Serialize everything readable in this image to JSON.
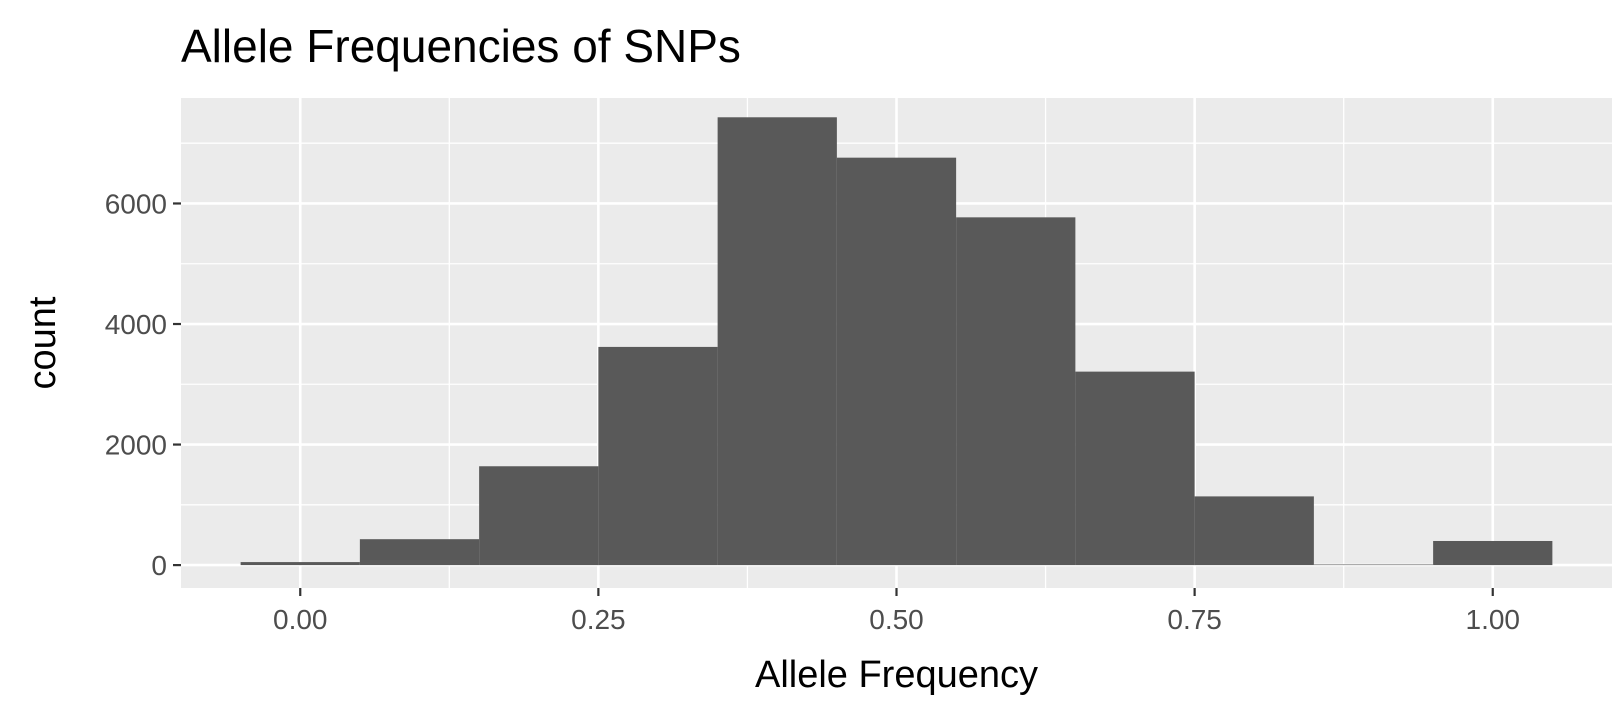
{
  "chart_data": {
    "type": "bar",
    "title": "Allele Frequencies of SNPs",
    "xlabel": "Allele Frequency",
    "ylabel": "count",
    "xlim": [
      -0.1,
      1.1
    ],
    "ylim": [
      -380,
      7750
    ],
    "x_ticks": [
      0.0,
      0.25,
      0.5,
      0.75,
      1.0
    ],
    "x_tick_labels": [
      "0.00",
      "0.25",
      "0.50",
      "0.75",
      "1.00"
    ],
    "y_ticks": [
      0,
      2000,
      4000,
      6000
    ],
    "y_tick_labels": [
      "0",
      "2000",
      "4000",
      "6000"
    ],
    "grid": true,
    "colors": {
      "panel_background": "#ebebeb",
      "grid_major": "#ffffff",
      "grid_minor": "#ffffff",
      "bar_fill": "#595959",
      "tick_text": "#4d4d4d",
      "axis_ticks": "#333333"
    },
    "bins": [
      {
        "x0": -0.05,
        "x1": 0.05,
        "count": 50
      },
      {
        "x0": 0.05,
        "x1": 0.15,
        "count": 430
      },
      {
        "x0": 0.15,
        "x1": 0.25,
        "count": 1640
      },
      {
        "x0": 0.25,
        "x1": 0.35,
        "count": 3620
      },
      {
        "x0": 0.35,
        "x1": 0.45,
        "count": 7430
      },
      {
        "x0": 0.45,
        "x1": 0.55,
        "count": 6760
      },
      {
        "x0": 0.55,
        "x1": 0.65,
        "count": 5770
      },
      {
        "x0": 0.65,
        "x1": 0.75,
        "count": 3210
      },
      {
        "x0": 0.75,
        "x1": 0.85,
        "count": 1140
      },
      {
        "x0": 0.85,
        "x1": 0.95,
        "count": 10
      },
      {
        "x0": 0.95,
        "x1": 1.05,
        "count": 400
      }
    ]
  }
}
